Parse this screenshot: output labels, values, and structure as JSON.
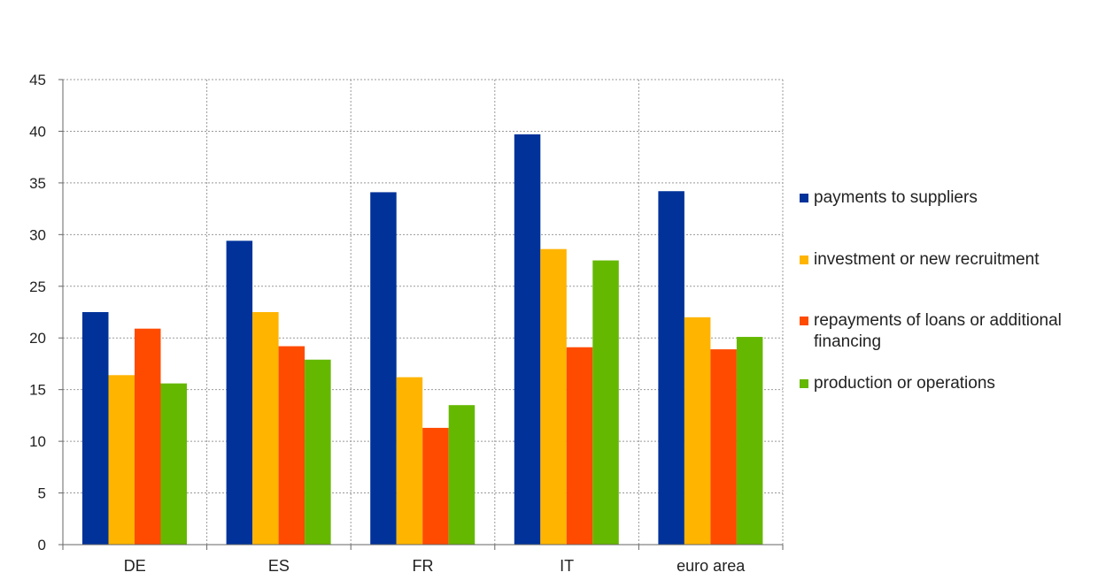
{
  "chart_data": {
    "type": "bar",
    "title": "",
    "xlabel": "",
    "ylabel": "",
    "categories": [
      "DE",
      "ES",
      "FR",
      "IT",
      "euro area"
    ],
    "ylim": [
      0,
      45
    ],
    "yticks": [
      0,
      5,
      10,
      15,
      20,
      25,
      30,
      35,
      40,
      45
    ],
    "grid": true,
    "legend_position": "right",
    "series": [
      {
        "name": "payments to suppliers",
        "color": "#003299",
        "values": [
          22.5,
          29.4,
          34.1,
          39.7,
          34.2
        ]
      },
      {
        "name": "investment or new recruitment",
        "color": "#FFB400",
        "values": [
          16.4,
          22.5,
          16.2,
          28.6,
          22.0
        ]
      },
      {
        "name": "repayments of loans or additional financing",
        "color": "#FF4B00",
        "values": [
          20.9,
          19.2,
          11.3,
          19.1,
          18.9
        ]
      },
      {
        "name": "production or operations",
        "color": "#65B800",
        "values": [
          15.6,
          17.9,
          13.5,
          27.5,
          20.1
        ]
      }
    ]
  }
}
